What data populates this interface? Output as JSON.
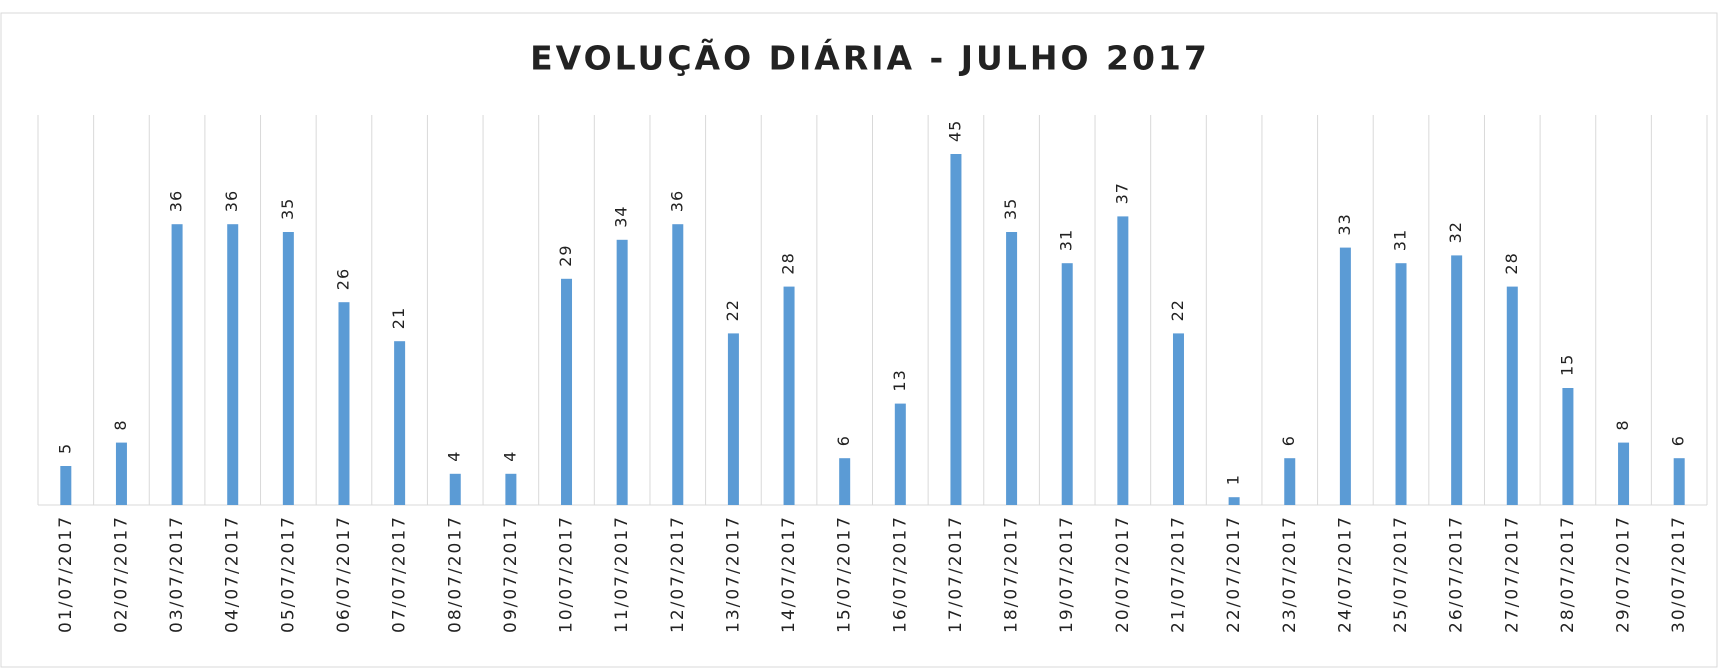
{
  "chart_data": {
    "type": "bar",
    "title": "EVOLUÇÃO DIÁRIA - JULHO 2017",
    "categories": [
      "01/07/2017",
      "02/07/2017",
      "03/07/2017",
      "04/07/2017",
      "05/07/2017",
      "06/07/2017",
      "07/07/2017",
      "08/07/2017",
      "09/07/2017",
      "10/07/2017",
      "11/07/2017",
      "12/07/2017",
      "13/07/2017",
      "14/07/2017",
      "15/07/2017",
      "16/07/2017",
      "17/07/2017",
      "18/07/2017",
      "19/07/2017",
      "20/07/2017",
      "21/07/2017",
      "22/07/2017",
      "23/07/2017",
      "24/07/2017",
      "25/07/2017",
      "26/07/2017",
      "27/07/2017",
      "28/07/2017",
      "29/07/2017",
      "30/07/2017"
    ],
    "values": [
      5,
      8,
      36,
      36,
      35,
      26,
      21,
      4,
      4,
      29,
      34,
      36,
      22,
      28,
      6,
      13,
      45,
      35,
      31,
      37,
      22,
      1,
      6,
      33,
      31,
      32,
      28,
      15,
      8,
      6
    ],
    "color": "#5b9bd5",
    "ylim": [
      0,
      50
    ],
    "grid": true
  }
}
